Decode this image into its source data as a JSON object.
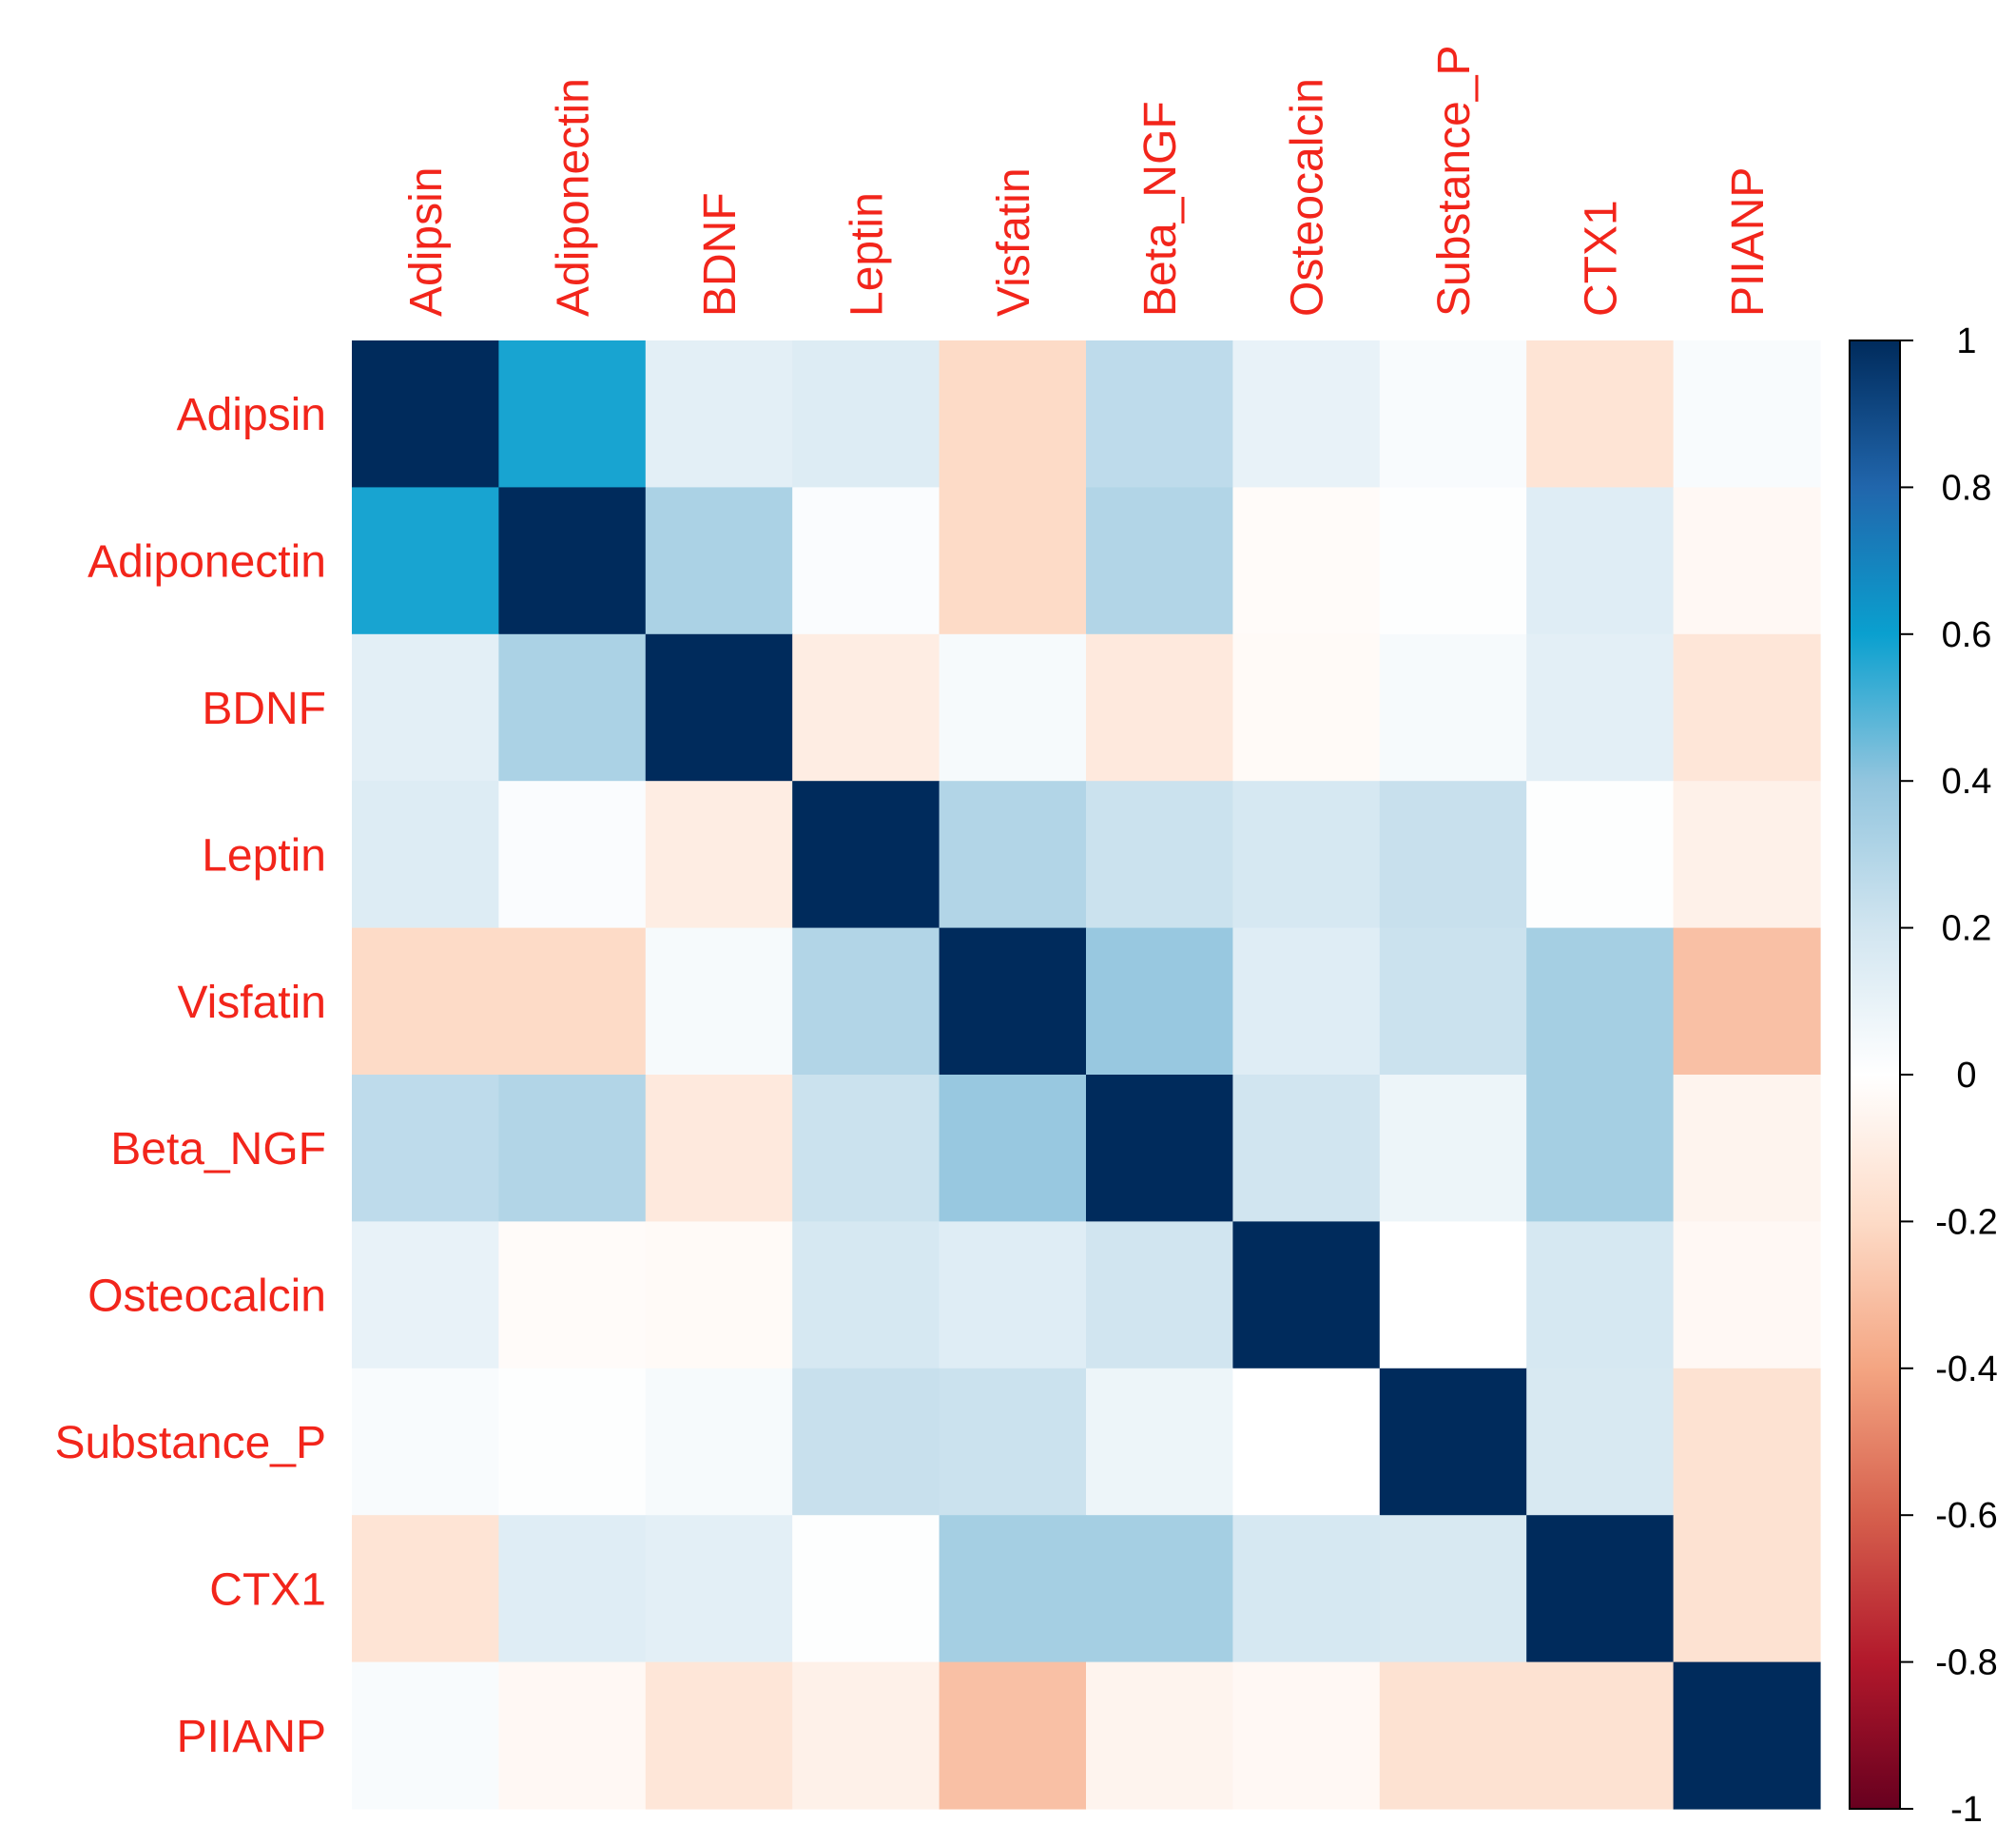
{
  "chart_data": {
    "type": "heatmap",
    "title": "",
    "variables": [
      "Adipsin",
      "Adiponectin",
      "BDNF",
      "Leptin",
      "Visfatin",
      "Beta_NGF",
      "Osteocalcin",
      "Substance_P",
      "CTX1",
      "PIIANP"
    ],
    "matrix": [
      [
        1.0,
        0.58,
        0.12,
        0.15,
        -0.2,
        0.26,
        0.1,
        0.03,
        -0.15,
        0.03
      ],
      [
        0.58,
        1.0,
        0.32,
        0.02,
        -0.2,
        0.3,
        -0.02,
        0.01,
        0.14,
        -0.04
      ],
      [
        0.12,
        0.32,
        1.0,
        -0.1,
        0.04,
        -0.12,
        -0.03,
        0.04,
        0.12,
        -0.14
      ],
      [
        0.15,
        0.02,
        -0.1,
        1.0,
        0.3,
        0.22,
        0.18,
        0.23,
        0.01,
        -0.08
      ],
      [
        -0.2,
        -0.2,
        0.04,
        0.3,
        1.0,
        0.38,
        0.14,
        0.22,
        0.34,
        -0.3
      ],
      [
        0.26,
        0.3,
        -0.12,
        0.22,
        0.38,
        1.0,
        0.2,
        0.08,
        0.34,
        -0.06
      ],
      [
        0.1,
        -0.02,
        -0.03,
        0.18,
        0.14,
        0.2,
        1.0,
        0.0,
        0.18,
        -0.04
      ],
      [
        0.03,
        0.01,
        0.04,
        0.23,
        0.22,
        0.08,
        0.0,
        1.0,
        0.17,
        -0.16
      ],
      [
        -0.15,
        0.14,
        0.12,
        0.01,
        0.34,
        0.34,
        0.18,
        0.17,
        1.0,
        -0.16
      ],
      [
        0.03,
        -0.04,
        -0.14,
        -0.08,
        -0.3,
        -0.06,
        -0.04,
        -0.16,
        -0.16,
        1.0
      ]
    ],
    "colorbar": {
      "min": -1,
      "max": 1,
      "tick_labels": [
        "1",
        "0.8",
        "0.6",
        "0.4",
        "0.2",
        "0",
        "-0.2",
        "-0.4",
        "-0.6",
        "-0.8",
        "-1"
      ],
      "tick_values": [
        1,
        0.8,
        0.6,
        0.4,
        0.2,
        0,
        -0.2,
        -0.4,
        -0.6,
        -0.8,
        -1
      ]
    },
    "colorscale": [
      [
        -1.0,
        "#67001f"
      ],
      [
        -0.8,
        "#b2182b"
      ],
      [
        -0.6,
        "#d6604d"
      ],
      [
        -0.4,
        "#f4a582"
      ],
      [
        -0.2,
        "#fddbc7"
      ],
      [
        0.0,
        "#ffffff"
      ],
      [
        0.2,
        "#d1e5f0"
      ],
      [
        0.4,
        "#92c5de"
      ],
      [
        0.6,
        "#0aa0cf"
      ],
      [
        0.8,
        "#2166ac"
      ],
      [
        1.0,
        "#002b5c"
      ]
    ],
    "label_color": "#f2251b",
    "tick_color": "#000000"
  }
}
